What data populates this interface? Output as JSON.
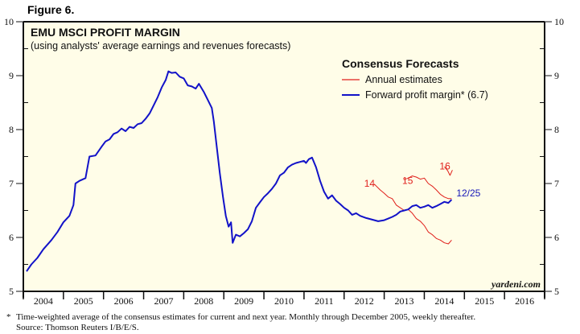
{
  "figure_label": "Figure 6.",
  "footnote": {
    "marker": "*",
    "text": "Time-weighted average of the consensus estimates for current and next year. Monthly through December 2005, weekly thereafter.",
    "source": "Source: Thomson Reuters I/B/E/S."
  },
  "watermark": "yardeni.com",
  "colors": {
    "plot_background": "#fffde8",
    "forward_line": "#1212c8",
    "annual_line": "#e0201b",
    "axis": "#111111"
  },
  "chart_data": {
    "type": "line",
    "title": "EMU MSCI PROFIT MARGIN",
    "subtitle": "(using analysts' average earnings and revenues forecasts)",
    "xlabel": "",
    "ylabel": "",
    "xlim": [
      2004,
      2017
    ],
    "ylim": [
      5,
      10
    ],
    "yticks": [
      5,
      6,
      7,
      8,
      9,
      10
    ],
    "year_labels": [
      "2004",
      "2005",
      "2006",
      "2007",
      "2008",
      "2009",
      "2010",
      "2011",
      "2012",
      "2013",
      "2014",
      "2015",
      "2016"
    ],
    "grid": false,
    "legend": {
      "title": "Consensus Forecasts",
      "position": "top-right",
      "entries": [
        {
          "label": "Annual estimates",
          "series": "annual"
        },
        {
          "label": "Forward profit margin* (6.7)",
          "series": "forward"
        }
      ]
    },
    "series": [
      {
        "name": "Forward profit margin* (6.7)",
        "key": "forward",
        "points": [
          [
            2004.08,
            5.37
          ],
          [
            2004.2,
            5.5
          ],
          [
            2004.35,
            5.62
          ],
          [
            2004.5,
            5.78
          ],
          [
            2004.7,
            5.95
          ],
          [
            2004.85,
            6.1
          ],
          [
            2005.0,
            6.28
          ],
          [
            2005.15,
            6.4
          ],
          [
            2005.25,
            6.6
          ],
          [
            2005.3,
            7.0
          ],
          [
            2005.4,
            7.05
          ],
          [
            2005.55,
            7.1
          ],
          [
            2005.65,
            7.5
          ],
          [
            2005.8,
            7.52
          ],
          [
            2005.95,
            7.68
          ],
          [
            2006.05,
            7.78
          ],
          [
            2006.15,
            7.82
          ],
          [
            2006.25,
            7.92
          ],
          [
            2006.35,
            7.95
          ],
          [
            2006.45,
            8.02
          ],
          [
            2006.55,
            7.97
          ],
          [
            2006.65,
            8.05
          ],
          [
            2006.75,
            8.03
          ],
          [
            2006.85,
            8.1
          ],
          [
            2006.95,
            8.12
          ],
          [
            2007.05,
            8.2
          ],
          [
            2007.15,
            8.3
          ],
          [
            2007.25,
            8.45
          ],
          [
            2007.35,
            8.6
          ],
          [
            2007.45,
            8.78
          ],
          [
            2007.55,
            8.92
          ],
          [
            2007.62,
            9.08
          ],
          [
            2007.7,
            9.05
          ],
          [
            2007.8,
            9.06
          ],
          [
            2007.9,
            8.98
          ],
          [
            2008.0,
            8.95
          ],
          [
            2008.1,
            8.82
          ],
          [
            2008.2,
            8.8
          ],
          [
            2008.3,
            8.76
          ],
          [
            2008.38,
            8.85
          ],
          [
            2008.5,
            8.7
          ],
          [
            2008.6,
            8.55
          ],
          [
            2008.7,
            8.4
          ],
          [
            2008.75,
            8.15
          ],
          [
            2008.82,
            7.7
          ],
          [
            2008.9,
            7.2
          ],
          [
            2008.98,
            6.75
          ],
          [
            2009.05,
            6.4
          ],
          [
            2009.12,
            6.2
          ],
          [
            2009.18,
            6.28
          ],
          [
            2009.22,
            5.9
          ],
          [
            2009.3,
            6.05
          ],
          [
            2009.4,
            6.02
          ],
          [
            2009.5,
            6.08
          ],
          [
            2009.6,
            6.15
          ],
          [
            2009.7,
            6.3
          ],
          [
            2009.8,
            6.55
          ],
          [
            2009.9,
            6.65
          ],
          [
            2010.0,
            6.75
          ],
          [
            2010.1,
            6.82
          ],
          [
            2010.2,
            6.9
          ],
          [
            2010.3,
            7.0
          ],
          [
            2010.4,
            7.15
          ],
          [
            2010.5,
            7.2
          ],
          [
            2010.6,
            7.3
          ],
          [
            2010.7,
            7.35
          ],
          [
            2010.8,
            7.38
          ],
          [
            2010.9,
            7.4
          ],
          [
            2011.0,
            7.42
          ],
          [
            2011.05,
            7.38
          ],
          [
            2011.12,
            7.45
          ],
          [
            2011.2,
            7.48
          ],
          [
            2011.3,
            7.3
          ],
          [
            2011.4,
            7.05
          ],
          [
            2011.5,
            6.85
          ],
          [
            2011.6,
            6.72
          ],
          [
            2011.7,
            6.78
          ],
          [
            2011.8,
            6.68
          ],
          [
            2011.9,
            6.62
          ],
          [
            2012.0,
            6.55
          ],
          [
            2012.1,
            6.5
          ],
          [
            2012.2,
            6.42
          ],
          [
            2012.3,
            6.45
          ],
          [
            2012.4,
            6.4
          ],
          [
            2012.55,
            6.36
          ],
          [
            2012.7,
            6.33
          ],
          [
            2012.85,
            6.3
          ],
          [
            2013.0,
            6.32
          ],
          [
            2013.1,
            6.35
          ],
          [
            2013.2,
            6.38
          ],
          [
            2013.3,
            6.42
          ],
          [
            2013.4,
            6.48
          ],
          [
            2013.5,
            6.5
          ],
          [
            2013.6,
            6.52
          ],
          [
            2013.7,
            6.58
          ],
          [
            2013.8,
            6.6
          ],
          [
            2013.9,
            6.55
          ],
          [
            2014.0,
            6.57
          ],
          [
            2014.1,
            6.6
          ],
          [
            2014.2,
            6.55
          ],
          [
            2014.3,
            6.58
          ],
          [
            2014.4,
            6.62
          ],
          [
            2014.5,
            6.66
          ],
          [
            2014.6,
            6.64
          ],
          [
            2014.68,
            6.7
          ]
        ]
      },
      {
        "name": "Annual estimates 2014",
        "key": "annual",
        "label": "14",
        "points": [
          [
            2012.75,
            6.99
          ],
          [
            2012.9,
            6.88
          ],
          [
            2013.0,
            6.82
          ],
          [
            2013.1,
            6.75
          ],
          [
            2013.2,
            6.72
          ],
          [
            2013.3,
            6.6
          ],
          [
            2013.4,
            6.55
          ],
          [
            2013.5,
            6.5
          ],
          [
            2013.6,
            6.52
          ],
          [
            2013.7,
            6.45
          ],
          [
            2013.8,
            6.35
          ],
          [
            2013.9,
            6.3
          ],
          [
            2014.0,
            6.22
          ],
          [
            2014.1,
            6.1
          ],
          [
            2014.2,
            6.05
          ],
          [
            2014.3,
            5.98
          ],
          [
            2014.4,
            5.95
          ],
          [
            2014.5,
            5.9
          ],
          [
            2014.6,
            5.88
          ],
          [
            2014.68,
            5.95
          ]
        ]
      },
      {
        "name": "Annual estimates 2015",
        "key": "annual",
        "label": "15",
        "points": [
          [
            2013.48,
            7.07
          ],
          [
            2013.6,
            7.1
          ],
          [
            2013.7,
            7.14
          ],
          [
            2013.8,
            7.12
          ],
          [
            2013.9,
            7.08
          ],
          [
            2014.0,
            7.1
          ],
          [
            2014.1,
            7.0
          ],
          [
            2014.2,
            6.95
          ],
          [
            2014.3,
            6.88
          ],
          [
            2014.4,
            6.8
          ],
          [
            2014.5,
            6.75
          ],
          [
            2014.6,
            6.72
          ],
          [
            2014.68,
            6.72
          ]
        ]
      },
      {
        "name": "Annual estimates 2016",
        "key": "annual",
        "label": "16",
        "points": [
          [
            2014.5,
            7.31
          ],
          [
            2014.58,
            7.24
          ],
          [
            2014.64,
            7.15
          ],
          [
            2014.7,
            7.25
          ]
        ]
      }
    ],
    "annotations": [
      {
        "text": "14",
        "x": 2012.5,
        "y": 7.0,
        "color": "red"
      },
      {
        "text": "15",
        "x": 2013.45,
        "y": 7.05,
        "color": "red"
      },
      {
        "text": "16",
        "x": 2014.38,
        "y": 7.32,
        "color": "red"
      },
      {
        "text": "12/25",
        "x": 2014.8,
        "y": 6.82,
        "color": "blue"
      }
    ]
  }
}
